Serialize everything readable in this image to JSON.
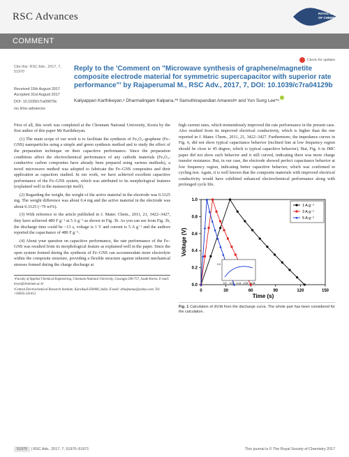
{
  "journal": "RSC Advances",
  "section_label": "COMMENT",
  "check_updates": "Check for updates",
  "cite_line": "Cite this: RSC Adv., 2017, 7, 51970",
  "meta": {
    "received": "Received 15th August 2017",
    "accepted": "Accepted 31st August 2017",
    "doi": "DOI: 10.1039/c7ra09079c",
    "site": "rsc.li/rsc-advances"
  },
  "title": "Reply to the 'Comment on \"Microwave synthesis of graphene/magnetite composite electrode material for symmetric supercapacitor with superior rate performance\"' by Rajaperumal M., RSC Adv., 2017, 7, DOI: 10.1039/c7ra04129b",
  "authors_html": "Kaliyappan Karthikeyan,ᵃ Dharmalingam Kalpana,*ᵇ Samuthirapandian Amareshᵃ and Yun Sung Lee*ᵃ",
  "body": {
    "left": [
      "First of all, this work was completed at the Chonnam National University, Korea by the first author of this paper Mr Karthikeyan.",
      "(1) The main scope of our work is to facilitate the synthesis of Fe₃O₄–graphene (Fe–GNS) nanoparticles using a simple and green synthesis method and to study the effect of the preparation technique on their capacitive performance. Since the preparation conditions affect the electrochemical performance of any cathode materials (Fe₃O₄-conductive carbon composites have already been prepared using various methods), a novel microwave method was adopted to fabricate the Fe–GNS composites and their application as capacitors studied. In our work, we have achieved excellent capacitive performance of the Fe–GNS system, which was attributed to its morphological features (explained well in the manuscript itself).",
      "(2) Regarding the weight, the weight of the active material in the electrode was 0.3125 mg. The weight difference was about 0.4 mg and the active material in the electrode was about 0.3125 (~79 wt%).",
      "(3) With reference to the article published in J. Mater. Chem., 2011, 21, 3422–3427, they have achieved 480 F g⁻¹ at 5 A g⁻¹ as shown in Fig. 3b. As you can see from Fig. 3b, the discharge time could be ~13 s, voltage is 1 V and current is 5 A g⁻¹ and the authors reported the capacitance of 480 F g⁻¹.",
      "(4) About your question on capacitive performance, the rate performance of the Fe–GNS was resulted from its morphological feature as explained well in the paper. Since the open system formed during the synthesis of Fe–GNS can accommodate more electrolyte within the composite structure, providing a flexible structure against inherent mechanical stresses formed during the charge discharge at"
    ],
    "right": [
      "high current rates, which tremendously improved the rate performance in the present case. Also resulted from its improved electrical conductivity, which is higher than the one reported in J. Mater. Chem., 2011, 21, 3422–3427. Furthermore, the impedance curves in Fig. 6, did not show typical capacitance behavior (inclined line at low frequency region should be close to 45 degree, which is typical capacitive behavior). But, Fig. 6 in JMC paper did not show such behavior and it still curved, indicating there was more charge transfer resistance. But, in our case, the electrode showed perfect capacitance behavior at low frequency region, indicating better capacitive behavior, which was confirmed in cycling test. Again, it is well known that the composite materials with improved electrical conductivity would have exhibited enhanced electrochemical performance along with prolonged cycle life."
    ]
  },
  "affiliations": [
    "ᵃFaculty of Applied Chemical Engineering, Chonnam National University, Gwangju 500-757, South Korea. E-mail: leeys@chonnam.ac.kr",
    "ᵇCentral Electrochemical Research Institute, Karaikudi 630006, India. E-mail: drkalpanaa@yahoo.com. Tel: +04565-241412"
  ],
  "figure": {
    "caption_bold": "Fig. 1",
    "caption": "Calculation of dV/dt from the discharge curve. The whole part has been considered for the calculation.",
    "xlabel": "Time (s)",
    "ylabel": "Voltage (V)",
    "xlim": [
      0,
      150
    ],
    "ylim": [
      0.0,
      1.0
    ],
    "xticks": [
      0,
      30,
      60,
      90,
      120,
      150
    ],
    "yticks": [
      0.0,
      0.2,
      0.4,
      0.6,
      0.8,
      1.0
    ],
    "legend": [
      {
        "label": "1 A g⁻¹",
        "marker": "circle",
        "color": "#000000"
      },
      {
        "label": "3 A g⁻¹",
        "marker": "square",
        "color": "#e02020"
      },
      {
        "label": "5 A g⁻¹",
        "marker": "triangle",
        "color": "#1030d0"
      }
    ],
    "series": {
      "s1": {
        "color": "#000000",
        "marker": "circle",
        "points": [
          [
            0,
            0
          ],
          [
            35,
            1.0
          ],
          [
            125,
            0.0
          ]
        ]
      },
      "s2": {
        "color": "#e02020",
        "marker": "square",
        "points": [
          [
            0,
            0
          ],
          [
            14,
            1.0
          ],
          [
            60,
            0.0
          ]
        ]
      },
      "s3": {
        "color": "#1030d0",
        "marker": "triangle",
        "points": [
          [
            0,
            0
          ],
          [
            7,
            1.0
          ],
          [
            40,
            0.0
          ]
        ]
      }
    },
    "inset": {
      "xticks": [
        3.9,
        4.02,
        4.14,
        4.26,
        4.38
      ],
      "ytick": 0.9,
      "line_color": "#1030d0"
    },
    "axis_color": "#000000",
    "label_fontsize": 8,
    "tick_fontsize": 6
  },
  "footer": {
    "page": "51970",
    "left_rest": " | RSC Adv., 2017, 7, 51970–51971",
    "right": "This journal is © The Royal Society of Chemistry 2017"
  }
}
